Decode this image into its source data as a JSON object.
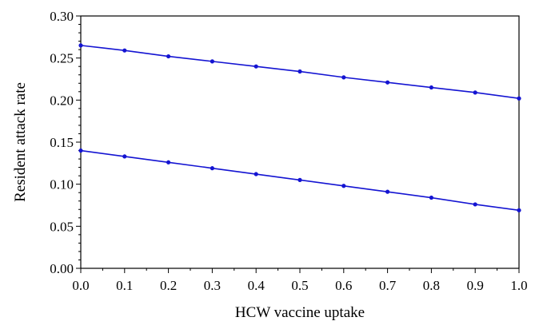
{
  "chart_data": {
    "type": "line",
    "title": "",
    "xlabel": "HCW vaccine uptake",
    "ylabel": "Resident attack rate",
    "xlim": [
      0.0,
      1.0
    ],
    "ylim": [
      0.0,
      0.3
    ],
    "x_ticks": [
      "0.0",
      "0.1",
      "0.2",
      "0.3",
      "0.4",
      "0.5",
      "0.6",
      "0.7",
      "0.8",
      "0.9",
      "1.0"
    ],
    "y_ticks": [
      "0.00",
      "0.05",
      "0.10",
      "0.15",
      "0.20",
      "0.25",
      "0.30"
    ],
    "grid": false,
    "legend": "none",
    "x": [
      0.0,
      0.1,
      0.2,
      0.3,
      0.4,
      0.5,
      0.6,
      0.7,
      0.8,
      0.9,
      1.0
    ],
    "series": [
      {
        "values": [
          0.265,
          0.259,
          0.252,
          0.246,
          0.24,
          0.234,
          0.227,
          0.221,
          0.215,
          0.209,
          0.202
        ],
        "color": "#1414d2"
      },
      {
        "values": [
          0.14,
          0.133,
          0.126,
          0.119,
          0.112,
          0.105,
          0.098,
          0.091,
          0.084,
          0.076,
          0.069
        ],
        "color": "#1414d2"
      }
    ]
  }
}
